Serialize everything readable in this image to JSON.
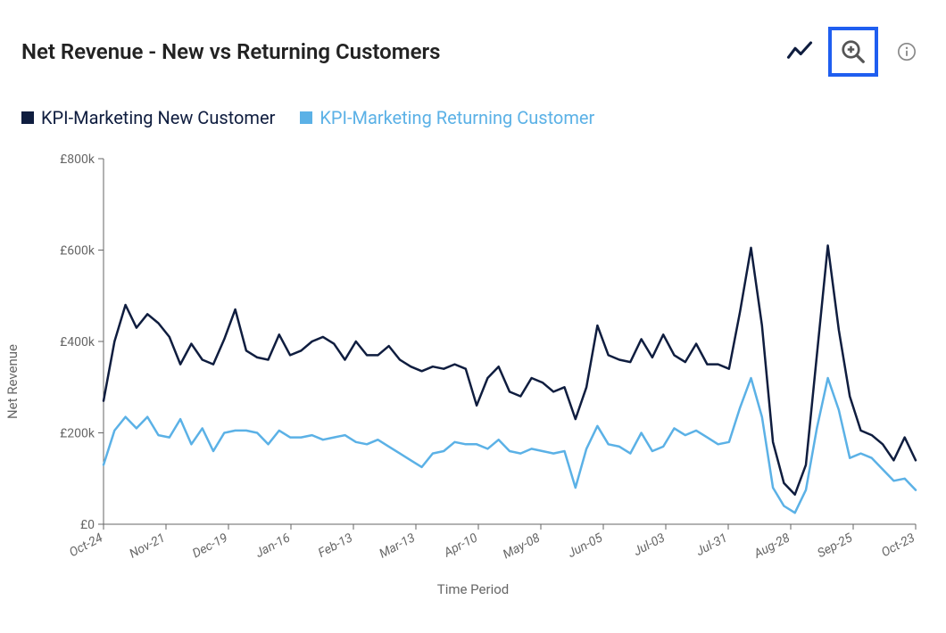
{
  "header": {
    "title": "Net Revenue - New vs Returning Customers"
  },
  "toolbar": {
    "line_mode_tooltip": "Line chart",
    "zoom_tooltip": "Zoom",
    "info_tooltip": "Info"
  },
  "legend": {
    "series_new": "KPI-Marketing New Customer",
    "series_returning": "KPI-Marketing Returning Customer"
  },
  "chart": {
    "type": "line",
    "y_axis_label": "Net Revenue",
    "x_axis_label": "Time Period",
    "y_ticks": [
      0,
      200000,
      400000,
      600000,
      800000
    ],
    "y_tick_labels": [
      "£0",
      "£200k",
      "£400k",
      "£600k",
      "£800k"
    ],
    "x_tick_labels": [
      "Oct-24",
      "Nov-21",
      "Dec-19",
      "Jan-16",
      "Feb-13",
      "Mar-13",
      "Apr-10",
      "May-08",
      "Jun-05",
      "Jul-03",
      "Jul-31",
      "Aug-28",
      "Sep-25",
      "Oct-23"
    ],
    "ylim": [
      0,
      800000
    ],
    "background_color": "#ffffff",
    "axis_color": "#666666",
    "line_width": 2.5,
    "colors": {
      "new": "#0f1d3f",
      "returning": "#5bb1e6"
    },
    "legend_text_colors": {
      "new": "#0f1d3f",
      "returning": "#5bb1e6"
    },
    "series": {
      "new": [
        270,
        400,
        480,
        430,
        460,
        440,
        410,
        350,
        395,
        360,
        350,
        405,
        470,
        380,
        365,
        360,
        415,
        370,
        380,
        400,
        410,
        395,
        360,
        400,
        370,
        370,
        390,
        360,
        345,
        335,
        345,
        340,
        350,
        340,
        260,
        320,
        345,
        290,
        280,
        320,
        310,
        290,
        300,
        230,
        300,
        435,
        370,
        360,
        355,
        405,
        365,
        415,
        370,
        355,
        395,
        350,
        350,
        340,
        465,
        605,
        435,
        180,
        90,
        65,
        130,
        370,
        610,
        425,
        280,
        205,
        195,
        175,
        140,
        190,
        140
      ],
      "returning": [
        130,
        205,
        235,
        210,
        235,
        195,
        190,
        230,
        175,
        210,
        160,
        200,
        205,
        205,
        200,
        175,
        205,
        190,
        190,
        195,
        185,
        190,
        195,
        180,
        175,
        185,
        170,
        155,
        140,
        125,
        155,
        160,
        180,
        175,
        175,
        165,
        185,
        160,
        155,
        165,
        160,
        155,
        160,
        80,
        165,
        215,
        175,
        170,
        155,
        200,
        160,
        170,
        210,
        195,
        205,
        190,
        175,
        180,
        255,
        320,
        235,
        80,
        40,
        25,
        75,
        210,
        320,
        250,
        145,
        155,
        145,
        120,
        95,
        100,
        75
      ]
    }
  }
}
